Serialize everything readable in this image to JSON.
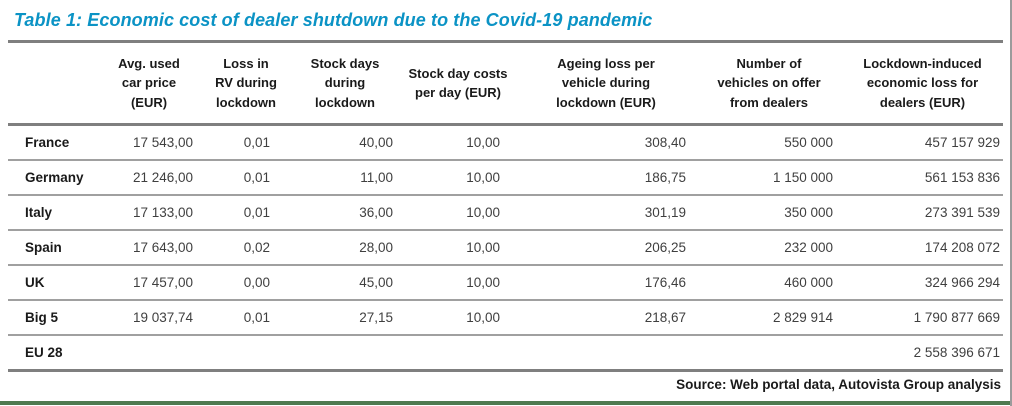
{
  "page": {
    "title": "Table 1: Economic cost of dealer shutdown due to the Covid-19 pandemic",
    "source_note": "Source: Web portal data, Autovista Group analysis"
  },
  "colors": {
    "title_blue": "#0b93c5",
    "major_rule_grey": "#7f7f7f",
    "row_rule_grey": "#a0a0a0",
    "bottom_bar_green": "#4f7a50",
    "page_right_border_grey": "#9b9b9b",
    "value_text_grey": "#3f3f3f"
  },
  "table": {
    "headers": [
      "",
      "Avg. used\ncar price\n(EUR)",
      "Loss in\nRV during\nlockdown",
      "Stock days\nduring\nlockdown",
      "Stock day costs\nper day (EUR)",
      "Ageing loss per\nvehicle during\nlockdown (EUR)",
      "Number of\nvehicles on offer\nfrom dealers",
      "Lockdown-induced\neconomic loss for\ndealers (EUR)"
    ],
    "rows": [
      {
        "label": "France",
        "values": [
          "17 543,00",
          "0,01",
          "40,00",
          "10,00",
          "308,40",
          "550 000",
          "457 157 929"
        ]
      },
      {
        "label": "Germany",
        "values": [
          "21 246,00",
          "0,01",
          "11,00",
          "10,00",
          "186,75",
          "1 150 000",
          "561 153 836"
        ]
      },
      {
        "label": "Italy",
        "values": [
          "17 133,00",
          "0,01",
          "36,00",
          "10,00",
          "301,19",
          "350 000",
          "273 391 539"
        ]
      },
      {
        "label": "Spain",
        "values": [
          "17 643,00",
          "0,02",
          "28,00",
          "10,00",
          "206,25",
          "232 000",
          "174 208 072"
        ]
      },
      {
        "label": "UK",
        "values": [
          "17 457,00",
          "0,00",
          "45,00",
          "10,00",
          "176,46",
          "460 000",
          "324 966 294"
        ]
      },
      {
        "label": "Big 5",
        "values": [
          "19 037,74",
          "0,01",
          "27,15",
          "10,00",
          "218,67",
          "2 829 914",
          "1 790 877 669"
        ]
      },
      {
        "label": "EU 28",
        "values": [
          "",
          "",
          "",
          "",
          "",
          "",
          "2 558 396 671"
        ]
      }
    ]
  }
}
